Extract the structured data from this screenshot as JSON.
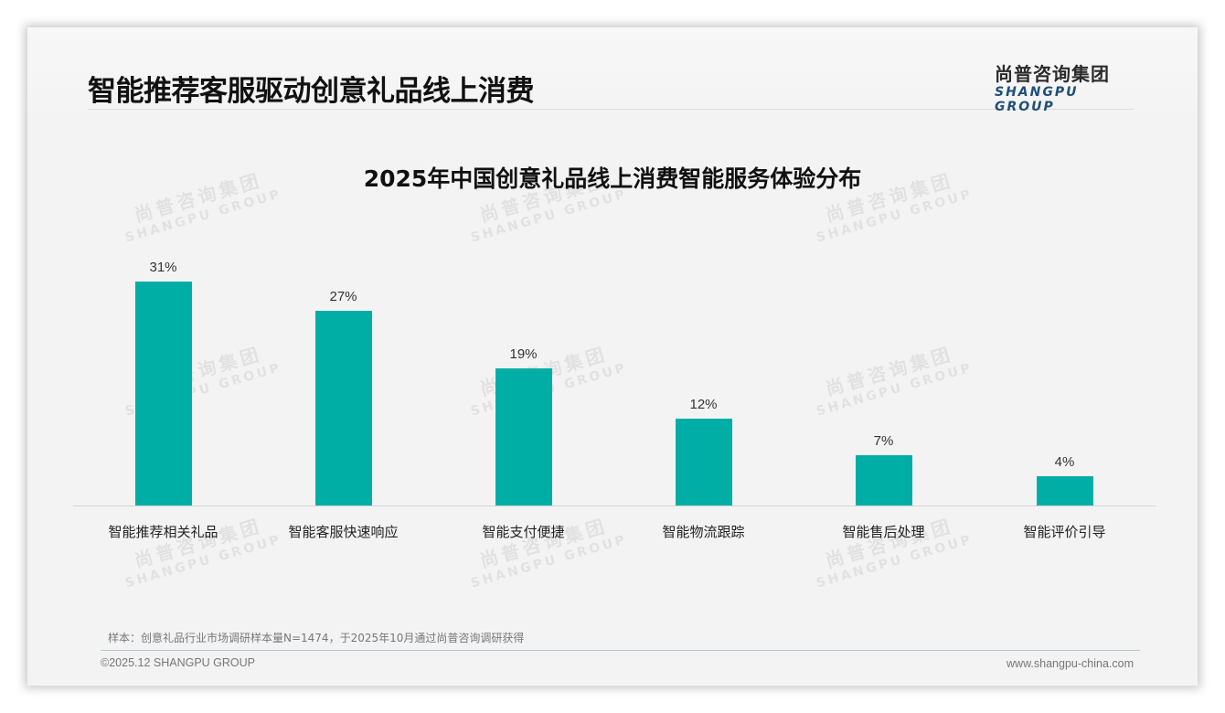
{
  "header": {
    "title": "智能推荐客服驱动创意礼品线上消费",
    "logo_cn": "尚普咨询集团",
    "logo_en": "SHANGPU GROUP"
  },
  "watermark": {
    "cn": "尚普咨询集团",
    "en": "SHANGPU GROUP"
  },
  "chart_data": {
    "type": "bar",
    "title": "2025年中国创意礼品线上消费智能服务体验分布",
    "categories": [
      "智能推荐相关礼品",
      "智能客服快速响应",
      "智能支付便捷",
      "智能物流跟踪",
      "智能售后处理",
      "智能评价引导"
    ],
    "values": [
      31,
      27,
      19,
      12,
      7,
      4
    ],
    "value_labels": [
      "31%",
      "27%",
      "19%",
      "12%",
      "7%",
      "4%"
    ],
    "unit": "%",
    "xlabel": "",
    "ylabel": "",
    "ylim": [
      0,
      35
    ],
    "grid": false,
    "legend": "none",
    "bar_color": "#00aea5"
  },
  "footer": {
    "source": "样本：创意礼品行业市场调研样本量N=1474，于2025年10月通过尚普咨询调研获得",
    "copyright": "©2025.12 SHANGPU GROUP",
    "website": "www.shangpu-china.com"
  }
}
